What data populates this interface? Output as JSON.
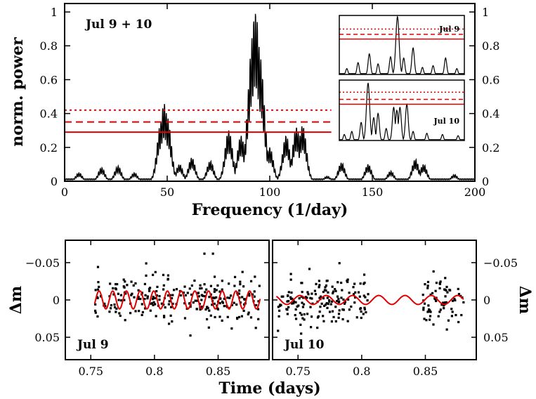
{
  "chart_data": [
    {
      "type": "line",
      "id": "periodogram",
      "title": "",
      "annotation": "Jul 9 + 10",
      "xlabel": "Frequency (1/day)",
      "ylabel": "norm. power",
      "xlim": [
        0,
        200
      ],
      "ylim": [
        0,
        1.05
      ],
      "xticks": [
        0,
        50,
        100,
        150,
        200
      ],
      "yticks": [
        0,
        0.2,
        0.4,
        0.6,
        0.8,
        1
      ],
      "ytick_labels": [
        "0",
        "0.2",
        "0.4",
        "0.6",
        "0.8",
        "1"
      ],
      "thresholds": [
        {
          "name": "solid",
          "style": "solid",
          "value": 0.29,
          "x_end": 130
        },
        {
          "name": "dashed",
          "style": "dashed",
          "value": 0.35,
          "x_end": 130
        },
        {
          "name": "dotted",
          "style": "dotted",
          "value": 0.42,
          "x_end": 130
        }
      ],
      "peaks": [
        {
          "freq": 7,
          "power": 0.05
        },
        {
          "freq": 18,
          "power": 0.08
        },
        {
          "freq": 26,
          "power": 0.09
        },
        {
          "freq": 34,
          "power": 0.05
        },
        {
          "freq": 47,
          "power": 0.35
        },
        {
          "freq": 48.5,
          "power": 0.46
        },
        {
          "freq": 50,
          "power": 0.38
        },
        {
          "freq": 56,
          "power": 0.1
        },
        {
          "freq": 62,
          "power": 0.14
        },
        {
          "freq": 71,
          "power": 0.12
        },
        {
          "freq": 80,
          "power": 0.3
        },
        {
          "freq": 86,
          "power": 0.27
        },
        {
          "freq": 92,
          "power": 0.88
        },
        {
          "freq": 93,
          "power": 1.0
        },
        {
          "freq": 95,
          "power": 0.75
        },
        {
          "freq": 100,
          "power": 0.2
        },
        {
          "freq": 108,
          "power": 0.27
        },
        {
          "freq": 113,
          "power": 0.32
        },
        {
          "freq": 116,
          "power": 0.33
        },
        {
          "freq": 128,
          "power": 0.03
        },
        {
          "freq": 135,
          "power": 0.11
        },
        {
          "freq": 148,
          "power": 0.1
        },
        {
          "freq": 159,
          "power": 0.06
        },
        {
          "freq": 171,
          "power": 0.13
        },
        {
          "freq": 175,
          "power": 0.1
        },
        {
          "freq": 190,
          "power": 0.04
        }
      ]
    },
    {
      "type": "line",
      "id": "inset-jul9",
      "annotation": "Jul 9",
      "xlim": [
        0,
        200
      ],
      "ylim": [
        0,
        1
      ],
      "thresholds": [
        {
          "name": "solid",
          "style": "solid",
          "value": 0.6
        },
        {
          "name": "dashed",
          "style": "dashed",
          "value": 0.68
        },
        {
          "name": "dotted",
          "style": "dotted",
          "value": 0.77
        }
      ],
      "peaks": [
        {
          "freq": 12,
          "power": 0.1
        },
        {
          "freq": 30,
          "power": 0.2
        },
        {
          "freq": 48,
          "power": 0.35
        },
        {
          "freq": 62,
          "power": 0.18
        },
        {
          "freq": 82,
          "power": 0.3
        },
        {
          "freq": 93,
          "power": 0.98
        },
        {
          "freq": 103,
          "power": 0.28
        },
        {
          "freq": 118,
          "power": 0.45
        },
        {
          "freq": 133,
          "power": 0.12
        },
        {
          "freq": 150,
          "power": 0.15
        },
        {
          "freq": 170,
          "power": 0.28
        },
        {
          "freq": 188,
          "power": 0.1
        }
      ]
    },
    {
      "type": "line",
      "id": "inset-jul10",
      "annotation": "Jul 10",
      "xlim": [
        0,
        200
      ],
      "ylim": [
        0,
        1
      ],
      "thresholds": [
        {
          "name": "solid",
          "style": "solid",
          "value": 0.6
        },
        {
          "name": "dashed",
          "style": "dashed",
          "value": 0.68
        },
        {
          "name": "dotted",
          "style": "dotted",
          "value": 0.8
        }
      ],
      "peaks": [
        {
          "freq": 8,
          "power": 0.1
        },
        {
          "freq": 20,
          "power": 0.15
        },
        {
          "freq": 35,
          "power": 0.3
        },
        {
          "freq": 46,
          "power": 0.95
        },
        {
          "freq": 55,
          "power": 0.38
        },
        {
          "freq": 62,
          "power": 0.45
        },
        {
          "freq": 75,
          "power": 0.2
        },
        {
          "freq": 87,
          "power": 0.55
        },
        {
          "freq": 92,
          "power": 0.5
        },
        {
          "freq": 97,
          "power": 0.55
        },
        {
          "freq": 108,
          "power": 0.6
        },
        {
          "freq": 118,
          "power": 0.15
        },
        {
          "freq": 140,
          "power": 0.12
        },
        {
          "freq": 165,
          "power": 0.1
        },
        {
          "freq": 190,
          "power": 0.08
        }
      ]
    },
    {
      "type": "scatter",
      "id": "lightcurve-jul9",
      "annotation": "Jul 9",
      "ylabel": "Δm",
      "xlim": [
        0.73,
        0.89
      ],
      "ylim": [
        0.08,
        -0.08
      ],
      "xticks": [
        0.75,
        0.8,
        0.85
      ],
      "yticks": [
        -0.05,
        0,
        0.05
      ],
      "ytick_labels": [
        "−0.05",
        "0",
        "0.05"
      ],
      "t_start": 0.753,
      "t_end": 0.883,
      "n_points": 260,
      "scatter_sigma": 0.016,
      "model": {
        "amplitude": 0.012,
        "frequency": 93,
        "phase": 0.4
      }
    },
    {
      "type": "scatter",
      "id": "lightcurve-jul10",
      "annotation": "Jul 10",
      "ylabel": "Δm",
      "xlim": [
        0.73,
        0.89
      ],
      "ylim": [
        0.08,
        -0.08
      ],
      "xticks": [
        0.75,
        0.8,
        0.85
      ],
      "yticks": [
        -0.05,
        0,
        0.05
      ],
      "ytick_labels": [
        "−0.05",
        "0",
        "0.05"
      ],
      "t_start": 0.733,
      "t_end": 0.88,
      "gaps": [
        [
          0.806,
          0.848
        ]
      ],
      "n_points": 230,
      "scatter_sigma": 0.017,
      "model": {
        "amplitude": 0.006,
        "frequency": 48.5,
        "phase": 0.3
      }
    }
  ],
  "xlabel_bottom": "Time (days)"
}
